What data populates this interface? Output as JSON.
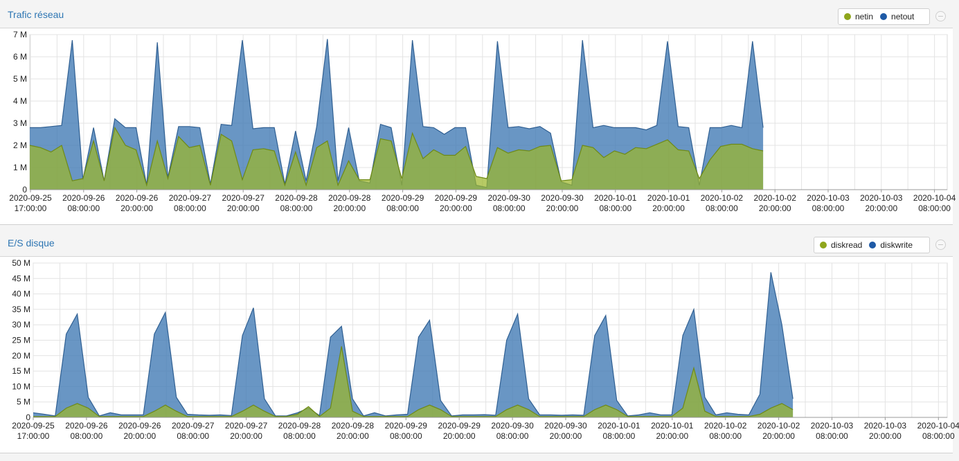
{
  "panels": [
    {
      "title": "Trafic réseau",
      "legend": [
        {
          "label": "netin",
          "color": "#8fa61c"
        },
        {
          "label": "netout",
          "color": "#1f5aa6"
        }
      ]
    },
    {
      "title": "E/S disque",
      "legend": [
        {
          "label": "diskread",
          "color": "#8fa61c"
        },
        {
          "label": "diskwrite",
          "color": "#1f5aa6"
        }
      ]
    }
  ],
  "chart_data": [
    {
      "type": "area",
      "title": "Trafic réseau",
      "y_tick_labels": [
        "0",
        "1 M",
        "2 M",
        "3 M",
        "4 M",
        "5 M",
        "6 M",
        "7 M"
      ],
      "ylim": [
        0,
        7000000
      ],
      "grid": true,
      "legend_position": "top-right",
      "x_tick_labels": [
        [
          "2020-09-25",
          "17:00:00"
        ],
        [
          "2020-09-26",
          "08:00:00"
        ],
        [
          "2020-09-26",
          "20:00:00"
        ],
        [
          "2020-09-27",
          "08:00:00"
        ],
        [
          "2020-09-27",
          "20:00:00"
        ],
        [
          "2020-09-28",
          "08:00:00"
        ],
        [
          "2020-09-28",
          "20:00:00"
        ],
        [
          "2020-09-29",
          "08:00:00"
        ],
        [
          "2020-09-29",
          "20:00:00"
        ],
        [
          "2020-09-30",
          "08:00:00"
        ],
        [
          "2020-09-30",
          "20:00:00"
        ],
        [
          "2020-10-01",
          "08:00:00"
        ],
        [
          "2020-10-01",
          "20:00:00"
        ],
        [
          "2020-10-02",
          "08:00:00"
        ],
        [
          "2020-10-02",
          "20:00:00"
        ],
        [
          "2020-10-03",
          "08:00:00"
        ],
        [
          "2020-10-03",
          "20:00:00"
        ],
        [
          "2020-10-04",
          "08:00:00"
        ]
      ],
      "series": [
        {
          "name": "netout",
          "color": "#1f5aa6",
          "values": [
            2800000,
            2800000,
            2850000,
            2900000,
            6750000,
            450000,
            2800000,
            400000,
            3200000,
            2800000,
            2800000,
            200000,
            6650000,
            550000,
            2850000,
            2850000,
            2800000,
            250000,
            2950000,
            2900000,
            6750000,
            2750000,
            2800000,
            2800000,
            250000,
            2650000,
            400000,
            2850000,
            6800000,
            400000,
            2800000,
            400000,
            300000,
            2950000,
            2800000,
            200000,
            6750000,
            2850000,
            2800000,
            2500000,
            2800000,
            2800000,
            200000,
            100000,
            6700000,
            2800000,
            2850000,
            2750000,
            2850000,
            2550000,
            350000,
            200000,
            6750000,
            2800000,
            2900000,
            2800000,
            2800000,
            2800000,
            2700000,
            2900000,
            6700000,
            2850000,
            2800000,
            200000,
            2800000,
            2800000,
            2900000,
            2800000,
            6700000,
            2800000
          ]
        },
        {
          "name": "netin",
          "color": "#8fa61c",
          "values": [
            2000000,
            1900000,
            1700000,
            2000000,
            400000,
            500000,
            2200000,
            400000,
            2800000,
            2000000,
            1800000,
            200000,
            2200000,
            500000,
            2400000,
            1900000,
            2000000,
            200000,
            2500000,
            2200000,
            450000,
            1800000,
            1850000,
            1750000,
            200000,
            1700000,
            200000,
            1900000,
            2200000,
            200000,
            1300000,
            450000,
            450000,
            2300000,
            2200000,
            500000,
            2550000,
            1400000,
            1800000,
            1550000,
            1550000,
            1950000,
            600000,
            500000,
            1900000,
            1650000,
            1800000,
            1750000,
            1950000,
            2000000,
            400000,
            450000,
            2000000,
            1900000,
            1450000,
            1750000,
            1600000,
            1900000,
            1850000,
            2050000,
            2250000,
            1800000,
            1750000,
            500000,
            1350000,
            1950000,
            2050000,
            2050000,
            1850000,
            1750000
          ]
        }
      ]
    },
    {
      "type": "area",
      "title": "E/S disque",
      "y_tick_labels": [
        "0",
        "5 M",
        "10 M",
        "15 M",
        "20 M",
        "25 M",
        "30 M",
        "35 M",
        "40 M",
        "45 M",
        "50 M"
      ],
      "ylim": [
        0,
        50000000
      ],
      "grid": true,
      "legend_position": "top-right",
      "x_tick_labels": [
        [
          "2020-09-25",
          "17:00:00"
        ],
        [
          "2020-09-26",
          "08:00:00"
        ],
        [
          "2020-09-26",
          "20:00:00"
        ],
        [
          "2020-09-27",
          "08:00:00"
        ],
        [
          "2020-09-27",
          "20:00:00"
        ],
        [
          "2020-09-28",
          "08:00:00"
        ],
        [
          "2020-09-28",
          "20:00:00"
        ],
        [
          "2020-09-29",
          "08:00:00"
        ],
        [
          "2020-09-29",
          "20:00:00"
        ],
        [
          "2020-09-30",
          "08:00:00"
        ],
        [
          "2020-09-30",
          "20:00:00"
        ],
        [
          "2020-10-01",
          "08:00:00"
        ],
        [
          "2020-10-01",
          "20:00:00"
        ],
        [
          "2020-10-02",
          "08:00:00"
        ],
        [
          "2020-10-02",
          "20:00:00"
        ],
        [
          "2020-10-03",
          "08:00:00"
        ],
        [
          "2020-10-03",
          "20:00:00"
        ],
        [
          "2020-10-04",
          "08:00:00"
        ]
      ],
      "series": [
        {
          "name": "diskwrite",
          "color": "#1f5aa6",
          "values": [
            1500000,
            1000000,
            500000,
            27000000,
            33500000,
            6500000,
            500000,
            1500000,
            800000,
            800000,
            800000,
            27000000,
            34000000,
            6500000,
            1000000,
            800000,
            700000,
            800000,
            600000,
            26500000,
            35500000,
            6000000,
            500000,
            500000,
            1500000,
            3000000,
            600000,
            26000000,
            29500000,
            6000000,
            500000,
            1500000,
            500000,
            800000,
            1000000,
            26000000,
            31500000,
            5500000,
            500000,
            800000,
            800000,
            900000,
            700000,
            25000000,
            33500000,
            6000000,
            800000,
            800000,
            700000,
            800000,
            700000,
            26500000,
            33000000,
            5500000,
            500000,
            800000,
            1500000,
            800000,
            800000,
            26500000,
            35000000,
            6500000,
            800000,
            1500000,
            1000000,
            800000,
            7500000,
            47000000,
            30000000,
            6000000
          ]
        },
        {
          "name": "diskread",
          "color": "#8fa61c",
          "values": [
            300000,
            300000,
            300000,
            3000000,
            4500000,
            3000000,
            300000,
            300000,
            300000,
            300000,
            300000,
            2000000,
            4000000,
            2000000,
            300000,
            300000,
            300000,
            300000,
            300000,
            2000000,
            4000000,
            2000000,
            300000,
            300000,
            1000000,
            3500000,
            300000,
            3000000,
            23000000,
            2000000,
            300000,
            300000,
            300000,
            300000,
            300000,
            2500000,
            4000000,
            2500000,
            300000,
            300000,
            300000,
            300000,
            300000,
            2500000,
            4000000,
            2500000,
            300000,
            300000,
            300000,
            300000,
            300000,
            2500000,
            4000000,
            2500000,
            300000,
            300000,
            300000,
            300000,
            300000,
            3000000,
            16000000,
            2000000,
            300000,
            300000,
            300000,
            300000,
            1000000,
            3000000,
            4500000,
            2500000
          ]
        }
      ]
    }
  ]
}
